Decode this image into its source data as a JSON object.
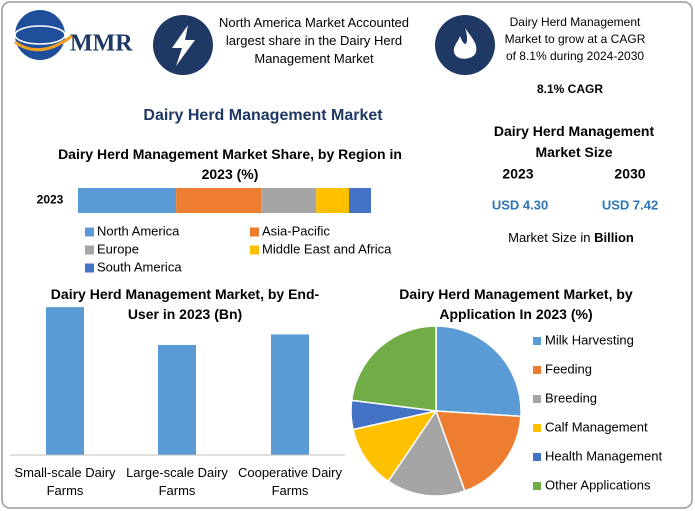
{
  "logo": "MMR",
  "banner": {
    "left": "North America Market Accounted largest share in the Dairy Herd Management Market",
    "right": "Dairy Herd Management Market to grow at a CAGR of 8.1% during 2024-2030",
    "cagr": "8.1% CAGR"
  },
  "title": "Dairy Herd Management Market",
  "market_size": {
    "title": "Dairy Herd Management Market Size",
    "years": [
      "2023",
      "2030"
    ],
    "values": [
      "USD 4.30",
      "USD 7.42"
    ],
    "note": "Market Size in",
    "unit": "Billion"
  },
  "chart_data": [
    {
      "type": "stacked-bar",
      "title": "Dairy Herd Management Market Share, by Region in 2023 (%)",
      "categories": [
        "2023"
      ],
      "xlim": [
        0,
        100
      ],
      "series": [
        {
          "name": "North America",
          "color": "#5b9bd5",
          "values": [
            33.5
          ]
        },
        {
          "name": "Asia-Pacific",
          "color": "#ed7d31",
          "values": [
            29
          ]
        },
        {
          "name": "Europe",
          "color": "#a5a5a5",
          "values": [
            18.8
          ]
        },
        {
          "name": "Middle East and Africa",
          "color": "#ffc000",
          "values": [
            11.2
          ]
        },
        {
          "name": "South America",
          "color": "#4472c4",
          "values": [
            7.5
          ]
        }
      ]
    },
    {
      "type": "bar",
      "title": "Dairy Herd Management Market, by End-User in 2023 (Bn)",
      "categories": [
        "Small-scale Dairy Farms",
        "Large-scale Dairy Farms",
        "Cooperative Dairy Farms"
      ],
      "values": [
        1.68,
        1.25,
        1.37
      ],
      "color": "#5b9bd5",
      "ylim": [
        0,
        1.75
      ]
    },
    {
      "type": "pie",
      "title": "Dairy Herd Management Market, by Application In 2023 (%)",
      "categories": [
        "Milk Harvesting",
        "Feeding",
        "Breeding",
        "Calf Management",
        "Health Management",
        "Other Applications"
      ],
      "values": [
        26,
        18.5,
        15,
        12,
        5.5,
        23
      ],
      "colors": [
        "#5b9bd5",
        "#ed7d31",
        "#a5a5a5",
        "#ffc000",
        "#4472c4",
        "#70ad47"
      ]
    }
  ]
}
